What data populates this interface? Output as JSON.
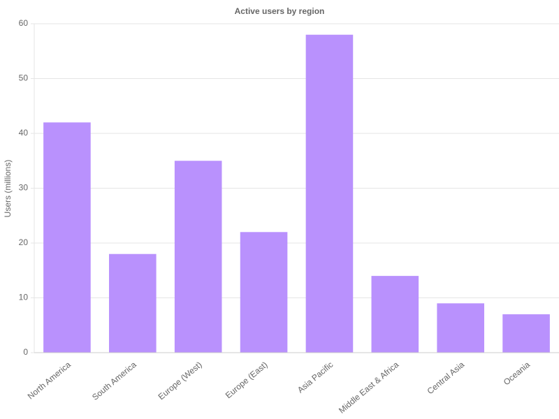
{
  "chart_data": {
    "type": "bar",
    "title": "Active users by region",
    "y_label": "Users (millions)",
    "categories": [
      "North America",
      "South America",
      "Europe (West)",
      "Europe (East)",
      "Asia Pacific",
      "Middle East & Africa",
      "Central Asia",
      "Oceania"
    ],
    "values": [
      42,
      18,
      35,
      22,
      58,
      14,
      9,
      7
    ],
    "color": "#b991fd",
    "ylim": [
      0,
      60
    ],
    "yticks": [
      0,
      10,
      20,
      30,
      40,
      50,
      60
    ],
    "grid": true
  }
}
